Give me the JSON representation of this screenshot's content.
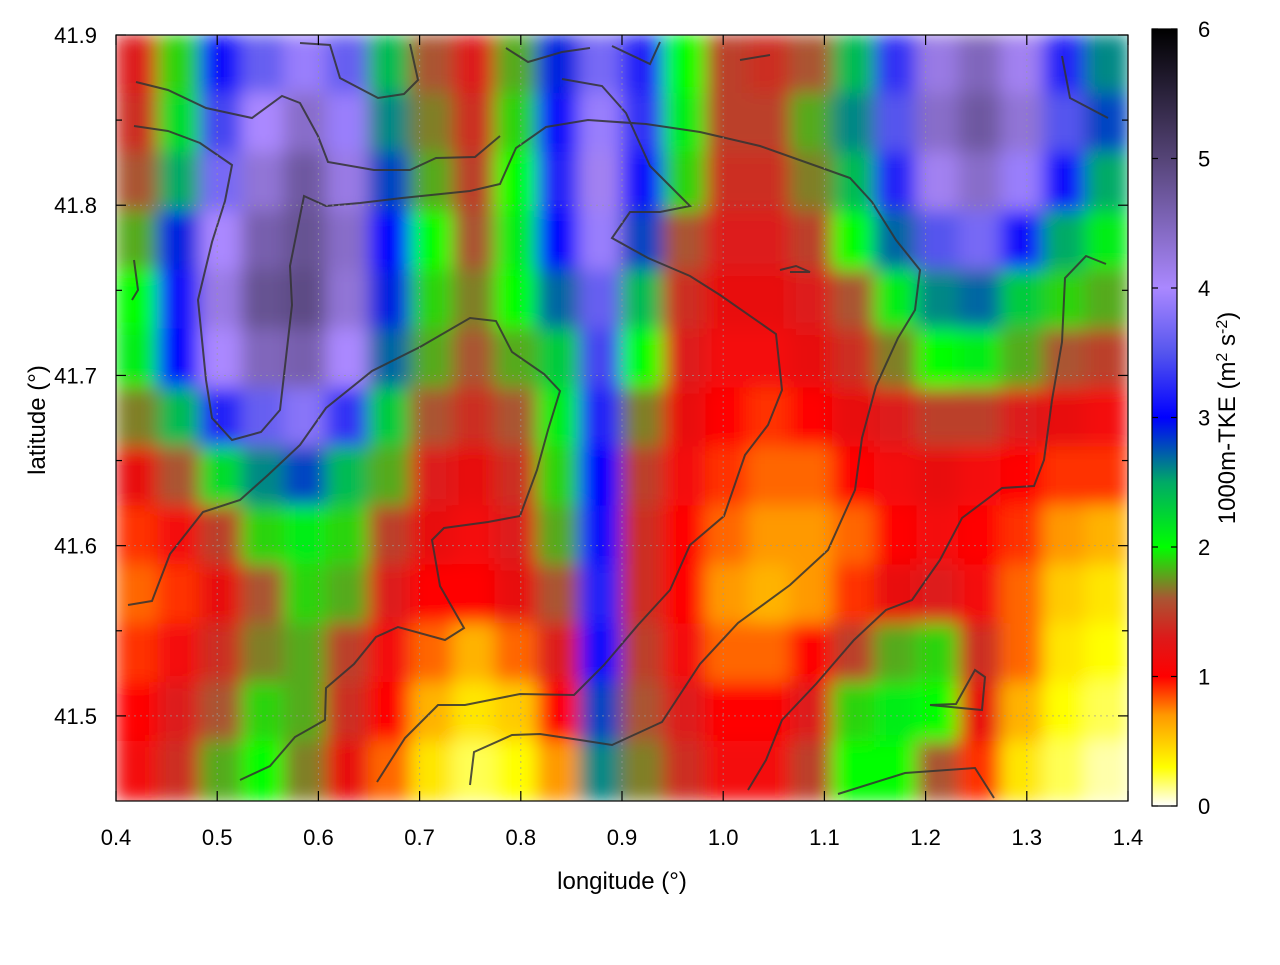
{
  "chart_data": {
    "type": "heatmap",
    "xlabel": "longitude (°)",
    "ylabel": "latitude (°)",
    "colorbar_label_main": "1000m-TKE (m",
    "colorbar_label_sup1": "2",
    "colorbar_label_mid": " s",
    "colorbar_label_sup2": "-2",
    "colorbar_label_end": ")",
    "xlim": [
      0.4,
      1.4
    ],
    "ylim": [
      41.45,
      41.9
    ],
    "clim": [
      0,
      6
    ],
    "xticks": [
      "0.4",
      "0.5",
      "0.6",
      "0.7",
      "0.8",
      "0.9",
      "1.0",
      "1.1",
      "1.2",
      "1.3",
      "1.4"
    ],
    "xtick_values": [
      0.4,
      0.5,
      0.6,
      0.7,
      0.8,
      0.9,
      1.0,
      1.1,
      1.2,
      1.3,
      1.4
    ],
    "yticks": [
      "41.5",
      "41.6",
      "41.7",
      "41.8",
      "41.9"
    ],
    "ytick_values": [
      41.5,
      41.6,
      41.7,
      41.8,
      41.9
    ],
    "cbticks": [
      "0",
      "1",
      "2",
      "3",
      "4",
      "5",
      "6"
    ],
    "cbtick_values": [
      0,
      1,
      2,
      3,
      4,
      5,
      6
    ],
    "grid": true,
    "colormap": [
      [
        0.0,
        "#ffffff"
      ],
      [
        0.3,
        "#ffff00"
      ],
      [
        0.7,
        "#ff9900"
      ],
      [
        1.0,
        "#ff0000"
      ],
      [
        1.3,
        "#dd1a1a"
      ],
      [
        1.6,
        "#aa5533"
      ],
      [
        2.0,
        "#00ff00"
      ],
      [
        2.5,
        "#00aa66"
      ],
      [
        3.0,
        "#0000ff"
      ],
      [
        3.5,
        "#5555ee"
      ],
      [
        4.0,
        "#aa88ff"
      ],
      [
        5.0,
        "#554477"
      ],
      [
        6.0,
        "#000000"
      ]
    ],
    "tke_field": [
      [
        1.3,
        1.9,
        3.1,
        3.6,
        3.9,
        3.6,
        2.4,
        1.6,
        1.3,
        1.8,
        2.9,
        3.7,
        3.2,
        2.0,
        1.5,
        1.4,
        1.6,
        2.4,
        3.3,
        4.2,
        4.5,
        4.1,
        3.2,
        2.6
      ],
      [
        1.4,
        2.2,
        3.4,
        4.0,
        4.4,
        3.9,
        2.6,
        1.7,
        1.4,
        1.9,
        3.1,
        3.9,
        3.3,
        2.1,
        1.5,
        1.5,
        1.8,
        2.6,
        3.5,
        4.4,
        4.7,
        4.3,
        3.5,
        2.8
      ],
      [
        1.6,
        2.5,
        3.7,
        4.3,
        4.7,
        4.2,
        2.8,
        1.8,
        1.5,
        2.0,
        3.2,
        4.1,
        3.1,
        1.9,
        1.4,
        1.4,
        1.7,
        2.4,
        3.2,
        4.1,
        4.4,
        3.9,
        3.1,
        2.5
      ],
      [
        1.8,
        2.9,
        4.0,
        4.6,
        4.8,
        4.4,
        3.0,
        2.0,
        1.6,
        2.1,
        3.0,
        3.9,
        2.8,
        1.6,
        1.3,
        1.3,
        1.5,
        2.0,
        2.7,
        3.5,
        3.7,
        3.1,
        2.5,
        2.1
      ],
      [
        2.0,
        3.1,
        4.2,
        4.8,
        4.9,
        4.3,
        2.9,
        1.9,
        1.7,
        2.0,
        2.7,
        3.6,
        2.4,
        1.4,
        1.2,
        1.2,
        1.3,
        1.6,
        2.1,
        2.6,
        2.7,
        2.3,
        1.9,
        1.8
      ],
      [
        2.1,
        3.0,
        4.0,
        4.5,
        4.6,
        4.0,
        2.7,
        1.8,
        1.6,
        1.8,
        2.3,
        3.4,
        2.0,
        1.3,
        1.1,
        1.1,
        1.2,
        1.4,
        1.7,
        2.0,
        2.1,
        1.8,
        1.6,
        1.5
      ],
      [
        1.7,
        2.4,
        3.2,
        3.6,
        3.8,
        3.3,
        2.3,
        1.6,
        1.4,
        1.6,
        2.1,
        3.2,
        1.7,
        1.2,
        1.0,
        0.9,
        1.0,
        1.2,
        1.3,
        1.5,
        1.5,
        1.3,
        1.2,
        1.1
      ],
      [
        1.2,
        1.6,
        2.2,
        2.6,
        2.8,
        2.4,
        1.8,
        1.3,
        1.2,
        1.4,
        1.9,
        3.0,
        1.5,
        1.1,
        0.9,
        0.8,
        0.8,
        1.0,
        1.1,
        1.2,
        1.1,
        1.0,
        0.9,
        0.9
      ],
      [
        0.9,
        1.1,
        1.5,
        1.9,
        2.1,
        1.9,
        1.5,
        1.2,
        1.1,
        1.3,
        1.8,
        3.1,
        1.4,
        1.0,
        0.8,
        0.7,
        0.7,
        0.8,
        1.0,
        1.1,
        1.0,
        0.9,
        0.7,
        0.6
      ],
      [
        0.8,
        0.9,
        1.2,
        1.6,
        1.9,
        1.8,
        1.3,
        1.0,
        1.0,
        1.2,
        1.6,
        3.2,
        1.4,
        1.0,
        0.7,
        0.6,
        0.7,
        0.9,
        1.2,
        1.3,
        1.1,
        0.8,
        0.5,
        0.4
      ],
      [
        0.9,
        1.1,
        1.4,
        1.7,
        1.8,
        1.5,
        1.1,
        0.8,
        0.6,
        0.8,
        1.3,
        3.1,
        1.5,
        1.1,
        0.8,
        0.8,
        1.0,
        1.5,
        1.8,
        1.9,
        1.4,
        0.8,
        0.4,
        0.3
      ],
      [
        1.0,
        1.3,
        1.6,
        1.9,
        1.8,
        1.4,
        1.0,
        0.6,
        0.4,
        0.5,
        1.0,
        2.8,
        1.6,
        1.3,
        1.0,
        1.0,
        1.3,
        1.9,
        2.1,
        2.0,
        1.2,
        0.6,
        0.3,
        0.2
      ],
      [
        1.1,
        1.4,
        1.8,
        2.0,
        1.7,
        1.2,
        0.8,
        0.4,
        0.2,
        0.3,
        0.7,
        2.6,
        1.7,
        1.4,
        1.1,
        1.1,
        1.5,
        2.0,
        2.0,
        1.6,
        0.9,
        0.4,
        0.2,
        0.1
      ]
    ]
  }
}
